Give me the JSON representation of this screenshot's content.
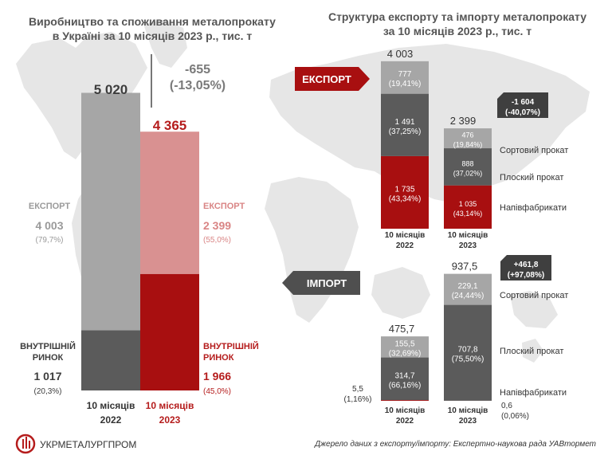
{
  "colors": {
    "dark_gray": "#5b5b5b",
    "mid_gray": "#8f8f8f",
    "light_gray": "#a6a6a6",
    "dark_red": "#a80f10",
    "light_red": "#d99191",
    "red_text": "#b51c1c",
    "map": "#e6e6e6"
  },
  "chart_data": [
    {
      "type": "bar",
      "stacked": true,
      "title": "Виробництво та споживання металопрокату\nв Україні за 10 місяців 2023 р., тис. т",
      "categories": [
        "10 місяців\n2022",
        "10 місяців\n2023"
      ],
      "series": [
        {
          "name": "ВНУТРІШНІЙ\nРИНОК",
          "values": [
            1017,
            1966
          ],
          "shares": [
            "(20,3%)",
            "(45,0%)"
          ],
          "value_labels": [
            "1 017",
            "1 966"
          ]
        },
        {
          "name": "ЕКСПОРТ",
          "values": [
            4003,
            2399
          ],
          "shares": [
            "(79,7%)",
            "(55,0%)"
          ],
          "value_labels": [
            "4 003",
            "2 399"
          ]
        }
      ],
      "totals": [
        5020,
        4365
      ],
      "total_labels": [
        "5 020",
        "4 365"
      ],
      "change_label": "-655\n(-13,05%)"
    },
    {
      "type": "bar",
      "stacked": true,
      "title": "Структура експорту та імпорту металопрокату\nза 10 місяців 2023 р., тис. т",
      "sections": [
        {
          "name": "ЕКСПОРТ",
          "categories": [
            "10 місяців\n2022",
            "10 місяців\n2023"
          ],
          "series": [
            {
              "name": "Напівфабрикати",
              "values": [
                1735,
                1035
              ],
              "value_labels": [
                "1 735",
                "1 035"
              ],
              "shares": [
                "(43,34%)",
                "(43,14%)"
              ]
            },
            {
              "name": "Плоский прокат",
              "values": [
                1491,
                888
              ],
              "value_labels": [
                "1 491",
                "888"
              ],
              "shares": [
                "(37,25%)",
                "(37,02%)"
              ]
            },
            {
              "name": "Сортовий прокат",
              "values": [
                777,
                476
              ],
              "value_labels": [
                "777",
                "476"
              ],
              "shares": [
                "(19,41%)",
                "(19,84%)"
              ]
            }
          ],
          "totals": [
            4003,
            2399
          ],
          "total_labels": [
            "4 003",
            "2 399"
          ],
          "change_label": "-1 604\n(-40,07%)"
        },
        {
          "name": "ІМПОРТ",
          "categories": [
            "10 місяців\n2022",
            "10 місяців\n2023"
          ],
          "series": [
            {
              "name": "Напівфабрикати",
              "values": [
                5.5,
                0.6
              ],
              "value_labels": [
                "5,5",
                "0,6"
              ],
              "shares": [
                "(1,16%)",
                "(0,06%)"
              ]
            },
            {
              "name": "Плоский прокат",
              "values": [
                314.7,
                707.8
              ],
              "value_labels": [
                "314,7",
                "707,8"
              ],
              "shares": [
                "(66,16%)",
                "(75,50%)"
              ]
            },
            {
              "name": "Сортовий прокат",
              "values": [
                155.5,
                229.1
              ],
              "value_labels": [
                "155,5",
                "229,1"
              ],
              "shares": [
                "(32,69%)",
                "(24,44%)"
              ]
            }
          ],
          "totals": [
            475.7,
            937.5
          ],
          "total_labels": [
            "475,7",
            "937,5"
          ],
          "change_label": "+461,8\n(+97,08%)"
        }
      ]
    }
  ],
  "logo_text": "УКРМЕТАЛУРГПРОМ",
  "source_note": "Джерело даних з експорту/імпорту: Експертно-наукова рада  УАВтормет"
}
